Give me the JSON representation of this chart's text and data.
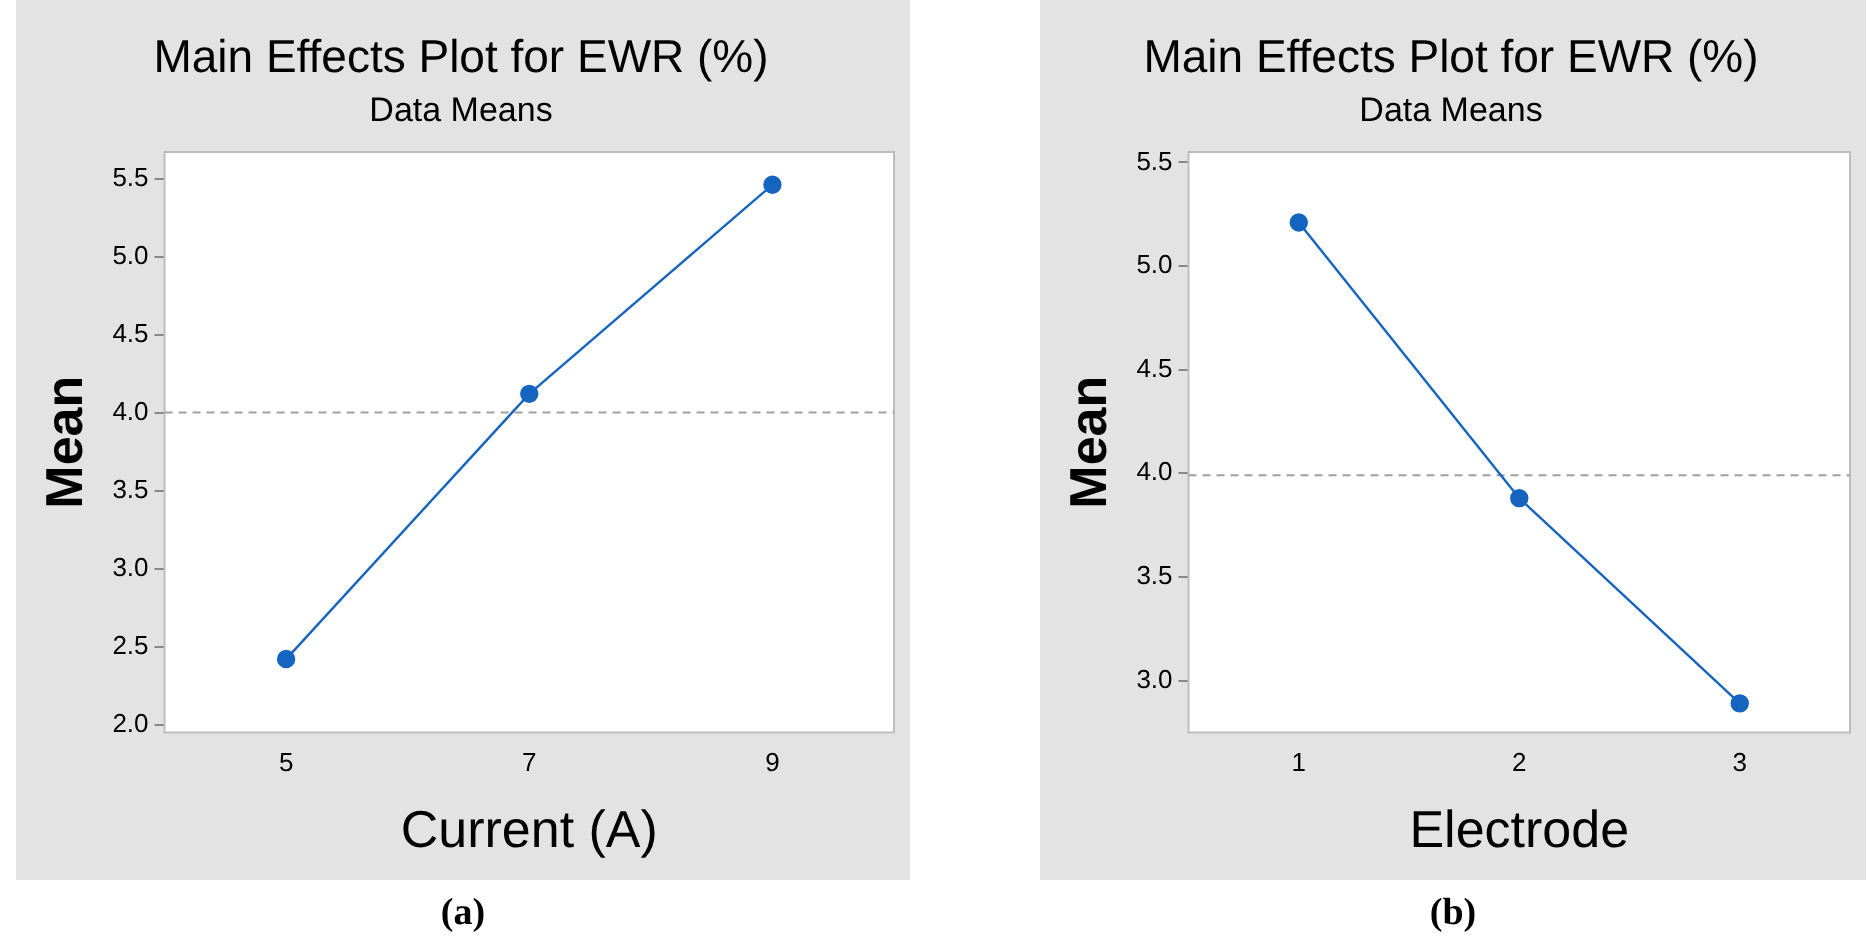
{
  "chart_data": [
    {
      "type": "line",
      "title": "Main Effects Plot for EWR (%)",
      "subtitle": "Data Means",
      "xlabel": "Current (A)",
      "ylabel": "Mean",
      "x": [
        5,
        7,
        9
      ],
      "values": [
        2.42,
        4.12,
        5.46
      ],
      "color": "#1565c0",
      "marker": "circle",
      "xlim": [
        4,
        10
      ],
      "xticks": [
        5,
        7,
        9
      ],
      "ylim": [
        1.95,
        5.67
      ],
      "yticks": [
        {
          "value": 2,
          "label": "2.0"
        },
        2.5,
        {
          "value": 3,
          "label": "3.0"
        },
        3.5,
        {
          "value": 4,
          "label": "4.0"
        },
        4.5,
        {
          "value": 5,
          "label": "5.0"
        },
        5.5
      ],
      "grid": false,
      "legend": false,
      "ref_lines": [
        {
          "axis": "y",
          "value": 4.0,
          "color": "#a0a0a0",
          "line_style": "dashed"
        }
      ],
      "annotations": [
        "(a)"
      ]
    },
    {
      "type": "line",
      "title": "Main Effects Plot for EWR (%)",
      "subtitle": "Data Means",
      "xlabel": "Electrode",
      "ylabel": "Mean",
      "x": [
        1,
        2,
        3
      ],
      "values": [
        5.21,
        3.88,
        2.89
      ],
      "color": "#1565c0",
      "marker": "circle",
      "xlim": [
        0.5,
        3.5
      ],
      "xticks": [
        1,
        2,
        3
      ],
      "ylim": [
        2.75,
        5.55
      ],
      "yticks": [
        {
          "value": 3,
          "label": "3.0"
        },
        3.5,
        {
          "value": 4,
          "label": "4.0"
        },
        4.5,
        {
          "value": 5,
          "label": "5.0"
        },
        5.5
      ],
      "grid": false,
      "legend": false,
      "ref_lines": [
        {
          "axis": "y",
          "value": 3.99,
          "color": "#a0a0a0",
          "line_style": "dashed"
        }
      ],
      "annotations": [
        "(b)"
      ]
    }
  ]
}
